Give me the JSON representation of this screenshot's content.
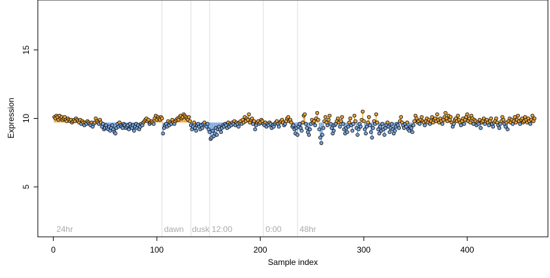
{
  "chart_data": {
    "type": "scatter",
    "title": "",
    "xlabel": "Sample index",
    "ylabel": "Expression",
    "xlim": [
      -15,
      478
    ],
    "ylim": [
      1.35,
      18.65
    ],
    "baseline": 9.7,
    "xticks": [
      0,
      100,
      200,
      300,
      400
    ],
    "yticks": [
      5,
      10,
      15
    ],
    "grid": false,
    "colors": {
      "above": "#e8a33d",
      "below": "#7aa6e0",
      "point_stroke": "#000000",
      "divider": "#dddddd",
      "annotation": "#aaaaaa"
    },
    "dividers": [
      105,
      133,
      151,
      203,
      236
    ],
    "annotations": [
      {
        "x": 3,
        "text": "24hr"
      },
      {
        "x": 107,
        "text": "dawn"
      },
      {
        "x": 134,
        "text": "dusk"
      },
      {
        "x": 153,
        "text": "12:00"
      },
      {
        "x": 205,
        "text": "0:00"
      },
      {
        "x": 238,
        "text": "48hr"
      }
    ],
    "series": [
      {
        "x_start": 1,
        "values": [
          10.1,
          10.0,
          10.2,
          10.1,
          9.9,
          10.2,
          10.0,
          10.1,
          9.9,
          10.0,
          10.1,
          9.9,
          9.8,
          10.0,
          9.9,
          9.8,
          9.9,
          9.7,
          9.8,
          9.9,
          9.8,
          10.0,
          9.9,
          9.8,
          9.7,
          9.9,
          9.6,
          9.8,
          9.7,
          9.5,
          9.7,
          9.6,
          9.8,
          9.7,
          9.6,
          9.5,
          9.7,
          9.4,
          9.6,
          9.7,
          10.0,
          9.8,
          9.7,
          9.6,
          9.9,
          9.7,
          9.4,
          9.6,
          9.2,
          9.3,
          9.5,
          9.3,
          9.2,
          9.4,
          9.1,
          9.3,
          9.5,
          9.2,
          9.0,
          8.9,
          9.3,
          9.6,
          9.4,
          9.7,
          9.5,
          9.4,
          9.3,
          9.6,
          9.5,
          9.3,
          9.4,
          9.5,
          9.2,
          9.6,
          9.4,
          9.3,
          9.5,
          9.1,
          9.4,
          9.6,
          9.3,
          9.5,
          9.2,
          9.4,
          9.6,
          9.5,
          9.7,
          9.8,
          9.9,
          10.0,
          9.8,
          9.9,
          9.6,
          9.7,
          9.8,
          9.7,
          9.6,
          10.0,
          10.2,
          9.9,
          10.1,
          10.0,
          9.9,
          10.1,
          10.0,
          8.9,
          9.3,
          9.5,
          9.6,
          9.4,
          9.8,
          9.5,
          9.7,
          9.6,
          9.9,
          9.7,
          9.6,
          9.8,
          9.9,
          10.0,
          9.9,
          10.1,
          10.2,
          10.0,
          10.1,
          10.3,
          10.2,
          10.1,
          10.0,
          9.9,
          10.1,
          9.8,
          9.5,
          9.2,
          9.4,
          9.7,
          9.3,
          9.1,
          9.5,
          9.6,
          9.4,
          9.2,
          9.5,
          9.3,
          9.6,
          9.7,
          9.5,
          9.4,
          9.6,
          9.2,
          9.0,
          8.5,
          8.6,
          9.1,
          8.7,
          8.9,
          9.3,
          8.8,
          9.2,
          9.4,
          9.2,
          9.0,
          9.3,
          9.5,
          9.4,
          9.6,
          9.5,
          9.3,
          9.7,
          9.4,
          9.6,
          9.5,
          9.7,
          9.6,
          9.8,
          9.5,
          9.7,
          9.6,
          9.4,
          9.7,
          9.8,
          9.6,
          9.9,
          9.7,
          10.1,
          9.8,
          10.0,
          9.9,
          10.3,
          9.7,
          9.9,
          10.0,
          9.6,
          9.8,
          9.2,
          9.5,
          9.7,
          9.8,
          9.6,
          9.7,
          9.9,
          9.8,
          9.6,
          9.5,
          9.7,
          9.4,
          9.6,
          9.5,
          9.7,
          9.6,
          9.3,
          9.5,
          9.4,
          9.6,
          9.7,
          9.8,
          9.6,
          9.4,
          9.7,
          9.8,
          9.9,
          9.7,
          9.5,
          9.6,
          9.8,
          10.0,
          10.1,
          9.8,
          9.9,
          9.7,
          9.4,
          9.5,
          9.2,
          8.9,
          9.3,
          8.8,
          9.4,
          9.6,
          9.3,
          9.1,
          9.7,
          10.2,
          10.3,
          9.6,
          9.3,
          9.0,
          8.8,
          9.2,
          9.6,
          9.9,
          9.7,
          9.8,
          9.5,
          10.0,
          10.4,
          9.9,
          9.2,
          8.6,
          8.2,
          8.8,
          9.3,
          9.8,
          10.1,
          9.7,
          9.5,
          9.9,
          10.2,
          9.6,
          9.3,
          8.9,
          9.1,
          9.5,
          9.6,
          9.8,
          10.0,
          9.7,
          9.4,
          9.8,
          10.1,
          9.6,
          9.2,
          8.9,
          9.3,
          9.0,
          9.4,
          9.7,
          10.0,
          9.5,
          9.1,
          9.6,
          10.2,
          9.8,
          9.3,
          8.8,
          9.2,
          9.6,
          9.4,
          9.9,
          10.5,
          9.8,
          9.2,
          8.9,
          9.4,
          9.7,
          10.1,
          9.5,
          9.0,
          8.6,
          9.3,
          9.8,
          9.6,
          10.3,
          9.7,
          9.2,
          8.9,
          9.4,
          9.1,
          9.6,
          9.2,
          8.8,
          9.3,
          9.5,
          9.7,
          9.4,
          9.0,
          9.3,
          9.6,
          9.2,
          8.9,
          9.1,
          9.4,
          9.6,
          9.5,
          9.3,
          9.8,
          10.1,
          9.7,
          9.5,
          9.3,
          9.6,
          9.4,
          9.7,
          9.2,
          9.1,
          9.4,
          9.3,
          9.0,
          9.5,
          9.8,
          10.2,
          10.0,
          9.7,
          9.8,
          9.6,
          9.9,
          10.1,
          9.8,
          9.7,
          9.5,
          9.8,
          10.0,
          9.7,
          9.9,
          9.6,
          9.8,
          10.1,
          9.7,
          9.9,
          10.0,
          9.8,
          10.3,
          9.9,
          9.7,
          10.0,
          9.8,
          9.6,
          9.9,
          10.1,
          10.4,
          10.0,
          9.8,
          10.2,
          9.9,
          10.1,
          9.7,
          9.4,
          9.6,
          9.9,
          10.0,
          9.8,
          10.2,
          9.9,
          9.7,
          9.5,
          9.8,
          10.0,
          9.6,
          9.9,
          10.1,
          10.3,
          9.8,
          10.0,
          9.7,
          10.2,
          10.0,
          9.6,
          9.9,
          9.8,
          9.5,
          9.7,
          9.6,
          9.9,
          9.3,
          9.7,
          9.8,
          10.0,
          9.6,
          9.8,
          9.9,
          9.7,
          9.5,
          9.8,
          10.0,
          9.6,
          9.4,
          9.7,
          9.8,
          10.0,
          9.7,
          9.5,
          9.3,
          9.6,
          9.8,
          10.1,
          9.9,
          9.6,
          9.4,
          9.7,
          9.2,
          9.8,
          10.0,
          9.7,
          9.9,
          9.6,
          9.8,
          10.1,
          9.7,
          9.9,
          10.2,
          9.8,
          9.6,
          9.9,
          10.0,
          9.7,
          9.8,
          10.1,
          9.9,
          9.7,
          10.0,
          9.8,
          9.6,
          9.9,
          10.2,
          9.8,
          10.0
        ]
      }
    ]
  }
}
